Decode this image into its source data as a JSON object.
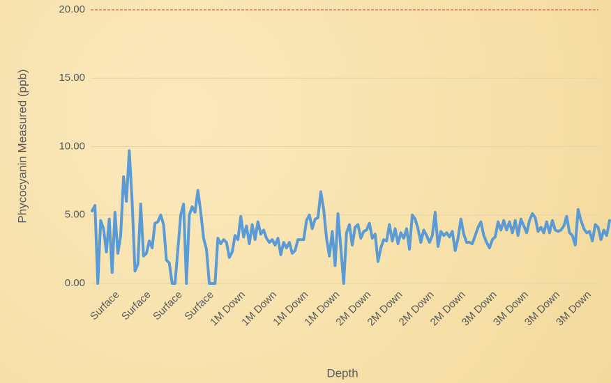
{
  "chart_data": {
    "type": "line",
    "x_label": "Depth",
    "y_label": "Phycocyanin Measured (ppb)",
    "categories": [
      null,
      null,
      null,
      null,
      null,
      null,
      null,
      null,
      null,
      "Surface",
      null,
      null,
      null,
      null,
      null,
      null,
      null,
      null,
      null,
      null,
      "Surface",
      null,
      null,
      null,
      null,
      null,
      null,
      null,
      null,
      null,
      null,
      "Surface",
      null,
      null,
      null,
      null,
      null,
      null,
      null,
      null,
      null,
      null,
      "Surface",
      null,
      null,
      null,
      null,
      null,
      null,
      null,
      null,
      null,
      null,
      "1M Down",
      null,
      null,
      null,
      null,
      null,
      null,
      null,
      null,
      null,
      null,
      "1M Down",
      null,
      null,
      null,
      null,
      null,
      null,
      null,
      null,
      null,
      null,
      "1M Down",
      null,
      null,
      null,
      null,
      null,
      null,
      null,
      null,
      null,
      null,
      "1M Down",
      null,
      null,
      null,
      null,
      null,
      null,
      null,
      null,
      null,
      null,
      "2M Down",
      null,
      null,
      null,
      null,
      null,
      null,
      null,
      null,
      null,
      null,
      "2M Down",
      null,
      null,
      null,
      null,
      null,
      null,
      null,
      null,
      null,
      null,
      "2M Down",
      null,
      null,
      null,
      null,
      null,
      null,
      null,
      null,
      null,
      null,
      "2M Down",
      null,
      null,
      null,
      null,
      null,
      null,
      null,
      null,
      null,
      null,
      "3M Down",
      null,
      null,
      null,
      null,
      null,
      null,
      null,
      null,
      null,
      null,
      "3M Down",
      null,
      null,
      null,
      null,
      null,
      null,
      null,
      null,
      null,
      null,
      "3M Down",
      null,
      null,
      null,
      null,
      null,
      null,
      null,
      null,
      null,
      null,
      "3M Down",
      null,
      null,
      null,
      null,
      null,
      null,
      null
    ],
    "series": [
      {
        "name": "Phycocyanin",
        "color": "#5b9bd5",
        "values": [
          5.3,
          5.7,
          0,
          4.6,
          4.0,
          2.3,
          4.7,
          0.8,
          5.2,
          2.2,
          3.5,
          7.8,
          6,
          9.7,
          6,
          0.9,
          1.4,
          5.8,
          2,
          2.2,
          3.1,
          2.6,
          4.4,
          4.5,
          5,
          4.3,
          1.7,
          1.5,
          0,
          0,
          2.5,
          5,
          5.8,
          0,
          5,
          5.6,
          5.2,
          6.8,
          5.2,
          3.3,
          2.5,
          0,
          0,
          0,
          3.3,
          2.9,
          3.2,
          3,
          1.9,
          2.3,
          3.5,
          3.2,
          4.9,
          3.4,
          4.2,
          2.9,
          4.3,
          3.2,
          4.5,
          3.6,
          3.9,
          3.3,
          3.0,
          3.2,
          2.8,
          3.3,
          2.1,
          3.0,
          2.6,
          3.0,
          2.2,
          2.4,
          3.2,
          3.2,
          3.2,
          4.6,
          5,
          4.0,
          4.7,
          4.8,
          6.7,
          5.4,
          3.3,
          2,
          3.8,
          1.3,
          5.1,
          2.6,
          0,
          3.7,
          4.3,
          2.8,
          4.1,
          4.3,
          3.3,
          3.8,
          3.9,
          4.4,
          3.3,
          3.6,
          1.6,
          2.6,
          3.2,
          3.1,
          4.3,
          3.1,
          4.0,
          2.9,
          3.7,
          3.3,
          4.0,
          2.5,
          5.0,
          4.7,
          4.0,
          3.0,
          3.9,
          3.5,
          3.0,
          3.5,
          5.2,
          2.7,
          3.8,
          3.5,
          3.7,
          3.4,
          3.8,
          2.4,
          3.3,
          4.7,
          3.6,
          3.0,
          3.0,
          2.9,
          3.5,
          4.1,
          4.5,
          3.5,
          3.0,
          2.6,
          3.2,
          3.4,
          4.5,
          3.9,
          4.6,
          3.9,
          4.5,
          3.7,
          4.6,
          3.5,
          4.7,
          4.2,
          3.7,
          4.6,
          5.1,
          4.8,
          3.8,
          4.1,
          3.7,
          4.5,
          3.7,
          4.6,
          3.9,
          3.8,
          3.9,
          4.2,
          4.9,
          3.7,
          3.5,
          2.8,
          5.4,
          4.6,
          4.0,
          3.7,
          3.8,
          3.1,
          4.3,
          4.1,
          3.2,
          3.9,
          3.5,
          4.6
        ]
      }
    ],
    "ylim": [
      0,
      20
    ],
    "yticks": [
      {
        "value": 0,
        "label": "0.00"
      },
      {
        "value": 5,
        "label": "5.00"
      },
      {
        "value": 10,
        "label": "10.00"
      },
      {
        "value": 15,
        "label": "15.00"
      },
      {
        "value": 20,
        "label": "20.00"
      }
    ],
    "grid": true
  }
}
